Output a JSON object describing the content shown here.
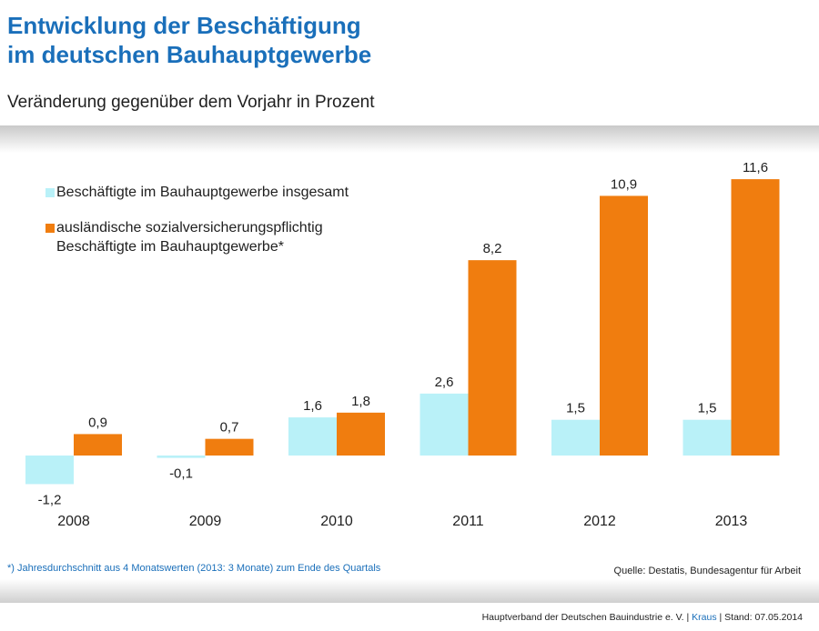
{
  "header": {
    "title_line1": "Entwicklung der Beschäftigung",
    "title_line2": "im deutschen Bauhauptgewerbe",
    "subtitle": "Veränderung gegenüber dem Vorjahr in Prozent"
  },
  "colors": {
    "series1": "#b9f1f8",
    "series2": "#f07d0f",
    "title": "#1a6fba"
  },
  "chart_data": {
    "type": "bar",
    "categories": [
      "2008",
      "2009",
      "2010",
      "2011",
      "2012",
      "2013"
    ],
    "series": [
      {
        "name": "Beschäftigte im Bauhauptgewerbe insgesamt",
        "values": [
          -1.2,
          -0.1,
          1.6,
          2.6,
          1.5,
          1.5
        ],
        "labels": [
          "-1,2",
          "-0,1",
          "1,6",
          "2,6",
          "1,5",
          "1,5"
        ]
      },
      {
        "name": "ausländische sozialversicherungspflichtig\nBeschäftigte im Bauhauptgewerbe*",
        "values": [
          0.9,
          0.7,
          1.8,
          8.2,
          10.9,
          11.6
        ],
        "labels": [
          "0,9",
          "0,7",
          "1,8",
          "8,2",
          "10,9",
          "11,6"
        ]
      }
    ],
    "ylim": [
      -1.5,
      12
    ],
    "grid": false,
    "legend": "top-left"
  },
  "footer": {
    "footnote": "*) Jahresdurchschnitt aus 4 Monatswerten (2013: 3 Monate) zum Ende des Quartals",
    "source": "Quelle: Destatis, Bundesagentur für Arbeit",
    "org": "Hauptverband der Deutschen Bauindustrie e. V. | ",
    "author": "Kraus",
    "stand": " | Stand: 07.05.2014"
  }
}
